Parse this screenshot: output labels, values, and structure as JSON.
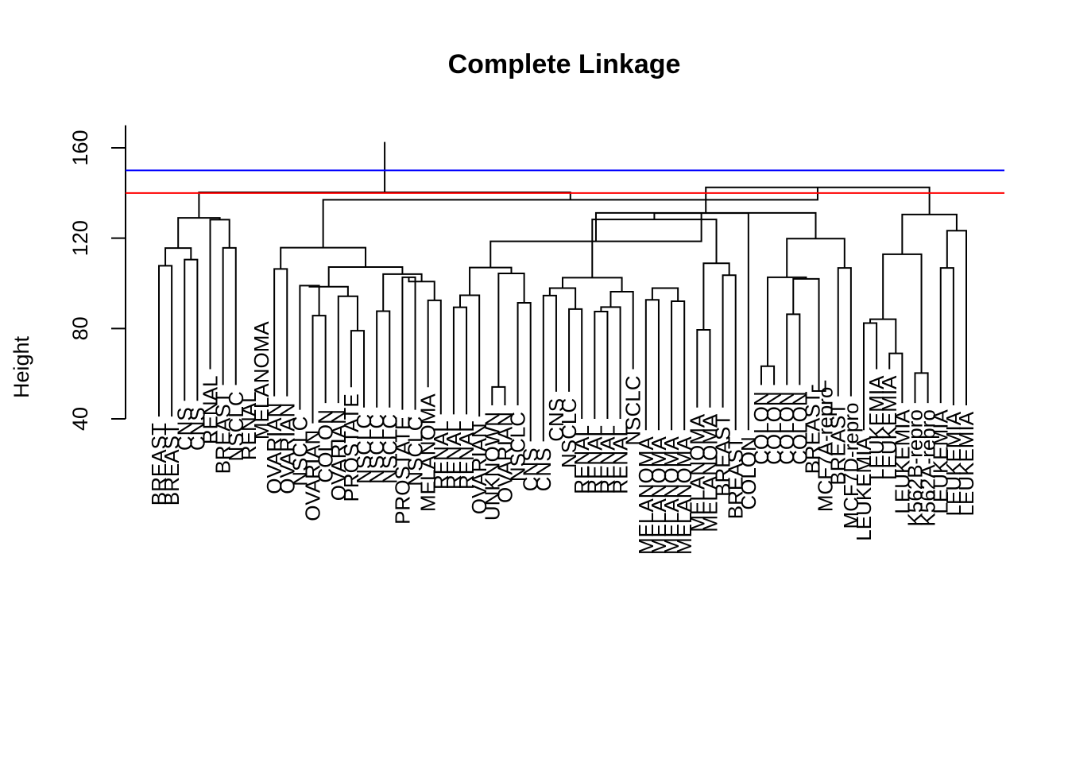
{
  "chart_data": {
    "type": "dendrogram",
    "title": "Complete Linkage",
    "xlabel": "",
    "ylabel": "Height",
    "ylim": [
      40,
      170
    ],
    "yticks": [
      40,
      80,
      120,
      160
    ],
    "cut_lines": [
      {
        "height": 150,
        "color": "#0000ff"
      },
      {
        "height": 140,
        "color": "#ff0000"
      }
    ],
    "leaf_labels": [
      "BREAST",
      "BREAST",
      "CNS",
      "CNS",
      "RENAL",
      "BREAST",
      "NSCLC",
      "RENAL",
      "MELANOMA",
      "OVARIAN",
      "OVARIAN",
      "NSCLC",
      "OVARIAN",
      "COLON",
      "OVARIAN",
      "PROSTATE",
      "NSCLC",
      "NSCLC",
      "NSCLC",
      "PROSTATE",
      "NSCLC",
      "MELANOMA",
      "RENAL",
      "RENAL",
      "RENAL",
      "OVARIAN",
      "UNKNOWN",
      "OVARIAN",
      "NSCLC",
      "CNS",
      "CNS",
      "CNS",
      "NSCLC",
      "RENAL",
      "RENAL",
      "RENAL",
      "RENAL",
      "NSCLC",
      "MELANOMA",
      "MELANOMA",
      "MELANOMA",
      "MELANOMA",
      "MELANOMA",
      "MELANOMA",
      "BREAST",
      "BREAST",
      "COLON",
      "COLON",
      "COLON",
      "COLON",
      "COLON",
      "BREAST",
      "MCF7A-repro",
      "BREAST",
      "MCF7D-repro",
      "LEUKEMIA",
      "LEUKEMIA",
      "LEUKEMIA",
      "LEUKEMIA",
      "K562B-repro",
      "K562A-repro",
      "LEUKEMIA",
      "LEUKEMIA",
      "LEUKEMIA"
    ],
    "leaf_heights": [
      41,
      41,
      48,
      48,
      62,
      55,
      55,
      55,
      86,
      50,
      50,
      44,
      38,
      47,
      47,
      54,
      45,
      45,
      45,
      44,
      44,
      54,
      42,
      42,
      42,
      41,
      46,
      46,
      46,
      30,
      30,
      52,
      52,
      40,
      40,
      40,
      40,
      62,
      35,
      35,
      35,
      35,
      45,
      45,
      45,
      35,
      35,
      55,
      55,
      55,
      55,
      55,
      57,
      50,
      50,
      35,
      62,
      62,
      47,
      47,
      47,
      47,
      46,
      46
    ],
    "merges": [
      [
        -1,
        -2,
        107.8
      ],
      [
        -3,
        -4,
        110.5
      ],
      [
        -6,
        -7,
        115.7
      ],
      [
        1,
        2,
        115.6
      ],
      [
        -5,
        3,
        128.2
      ],
      [
        4,
        5,
        129.0
      ],
      [
        -10,
        -11,
        106.4
      ],
      [
        -13,
        -14,
        85.7
      ],
      [
        -12,
        8,
        99.0
      ],
      [
        -16,
        -17,
        79.0
      ],
      [
        -15,
        10,
        94.3
      ],
      [
        9,
        11,
        98.5
      ],
      [
        -18,
        -19,
        87.7
      ],
      [
        -20,
        -21,
        102.7
      ],
      [
        -22,
        -23,
        92.5
      ],
      [
        14,
        15,
        100.8
      ],
      [
        13,
        16,
        104.1
      ],
      [
        -24,
        -25,
        89.4
      ],
      [
        18,
        -26,
        94.7
      ],
      [
        12,
        17,
        107.2
      ],
      [
        7,
        20,
        115.8
      ],
      [
        -27,
        -28,
        54.1
      ],
      [
        -29,
        -30,
        91.4
      ],
      [
        22,
        23,
        104.4
      ],
      [
        19,
        24,
        107.0
      ],
      [
        -31,
        -32,
        94.6
      ],
      [
        -33,
        -34,
        88.6
      ],
      [
        26,
        27,
        97.9
      ],
      [
        -35,
        -36,
        87.5
      ],
      [
        29,
        -37,
        89.5
      ],
      [
        30,
        -38,
        96.3
      ],
      [
        28,
        31,
        102.5
      ],
      [
        -39,
        -40,
        92.7
      ],
      [
        -41,
        -42,
        92.1
      ],
      [
        33,
        34,
        97.9
      ],
      [
        -43,
        -44,
        79.4
      ],
      [
        -45,
        -46,
        103.6
      ],
      [
        36,
        37,
        108.9
      ],
      [
        32,
        38,
        128.3
      ],
      [
        39,
        -47,
        131.1
      ],
      [
        25,
        40,
        118.6
      ],
      [
        -48,
        -49,
        63.3
      ],
      [
        -50,
        -51,
        86.3
      ],
      [
        -52,
        -53,
        52.3
      ],
      [
        43,
        44,
        102.0
      ],
      [
        -54,
        -55,
        106.8
      ],
      [
        42,
        45,
        102.7
      ],
      [
        46,
        47,
        119.8
      ],
      [
        41,
        48,
        131.2
      ],
      [
        -56,
        -57,
        82.4
      ],
      [
        -58,
        -59,
        69.0
      ],
      [
        50,
        51,
        84.1
      ],
      [
        -60,
        -61,
        60.3
      ],
      [
        -62,
        -63,
        106.8
      ],
      [
        52,
        53,
        112.9
      ],
      [
        -64,
        54,
        123.3
      ],
      [
        55,
        56,
        130.5
      ],
      [
        49,
        57,
        142.5
      ],
      [
        21,
        58,
        137.0
      ],
      [
        6,
        59,
        140.3
      ],
      [
        60,
        61,
        162.6
      ]
    ]
  }
}
